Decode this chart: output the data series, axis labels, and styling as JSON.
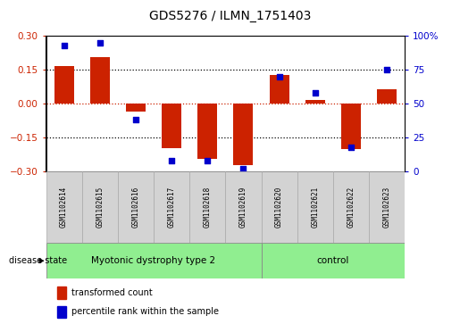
{
  "title": "GDS5276 / ILMN_1751403",
  "samples": [
    "GSM1102614",
    "GSM1102615",
    "GSM1102616",
    "GSM1102617",
    "GSM1102618",
    "GSM1102619",
    "GSM1102620",
    "GSM1102621",
    "GSM1102622",
    "GSM1102623"
  ],
  "bar_values": [
    0.165,
    0.205,
    -0.035,
    -0.195,
    -0.245,
    -0.27,
    0.125,
    0.015,
    -0.2,
    0.065
  ],
  "dot_values": [
    93,
    95,
    38,
    8,
    8,
    2,
    70,
    58,
    18,
    75
  ],
  "groups": [
    {
      "label": "Myotonic dystrophy type 2",
      "start": 0,
      "end": 5,
      "color": "#90ee90"
    },
    {
      "label": "control",
      "start": 6,
      "end": 9,
      "color": "#90ee90"
    }
  ],
  "ylim_left": [
    -0.3,
    0.3
  ],
  "ylim_right": [
    0,
    100
  ],
  "yticks_left": [
    -0.3,
    -0.15,
    0.0,
    0.15,
    0.3
  ],
  "yticks_right": [
    0,
    25,
    50,
    75,
    100
  ],
  "bar_color": "#cc2200",
  "dot_color": "#0000cc",
  "label_transformed": "transformed count",
  "label_percentile": "percentile rank within the sample",
  "disease_state_label": "disease state",
  "background_color": "#ffffff",
  "plot_bg_color": "#ffffff",
  "sample_box_color": "#d3d3d3",
  "sample_box_edge": "#aaaaaa",
  "bar_width": 0.55,
  "dot_size": 18
}
